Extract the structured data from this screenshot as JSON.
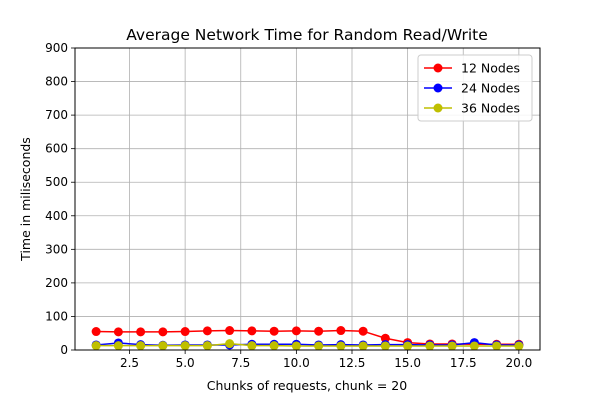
{
  "chart_data": {
    "type": "line",
    "title": "Average Network Time for Random Read/Write",
    "xlabel": "Chunks of requests, chunk = 20",
    "ylabel": "Time in miliseconds",
    "xlim": [
      0.05,
      20.95
    ],
    "ylim": [
      0,
      900
    ],
    "xticks": [
      2.5,
      5.0,
      7.5,
      10.0,
      12.5,
      15.0,
      17.5,
      20.0
    ],
    "xtick_labels": [
      "2.5",
      "5.0",
      "7.5",
      "10.0",
      "12.5",
      "15.0",
      "17.5",
      "20.0"
    ],
    "yticks": [
      0,
      100,
      200,
      300,
      400,
      500,
      600,
      700,
      800,
      900
    ],
    "ytick_labels": [
      "0",
      "100",
      "200",
      "300",
      "400",
      "500",
      "600",
      "700",
      "800",
      "900"
    ],
    "grid": true,
    "legend_position": "top-right",
    "x": [
      1,
      2,
      3,
      4,
      5,
      6,
      7,
      8,
      9,
      10,
      11,
      12,
      13,
      14,
      15,
      16,
      17,
      18,
      19,
      20
    ],
    "series": [
      {
        "name": "12 Nodes",
        "color": "#ff0000",
        "values": [
          55,
          54,
          54,
          54,
          55,
          57,
          58,
          57,
          56,
          57,
          56,
          58,
          56,
          35,
          22,
          18,
          18,
          17,
          17,
          17
        ]
      },
      {
        "name": "24 Nodes",
        "color": "#0000ff",
        "values": [
          15,
          21,
          16,
          14,
          15,
          15,
          15,
          17,
          17,
          17,
          15,
          16,
          15,
          16,
          16,
          15,
          15,
          22,
          15,
          15
        ]
      },
      {
        "name": "36 Nodes",
        "color": "#bfbf00",
        "values": [
          13,
          13,
          13,
          13,
          13,
          13,
          19,
          13,
          13,
          12,
          12,
          12,
          12,
          12,
          12,
          12,
          12,
          12,
          12,
          12
        ]
      }
    ]
  }
}
